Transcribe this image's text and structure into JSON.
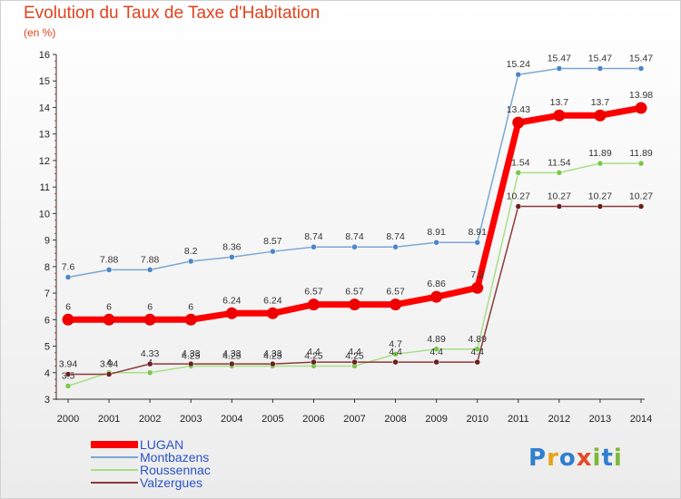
{
  "title": "Evolution du Taux de Taxe d'Habitation",
  "unit": "(en %)",
  "logo": {
    "letters": [
      {
        "ch": "P",
        "color": "#2f7fd0"
      },
      {
        "ch": "r",
        "color": "#e8a317"
      },
      {
        "ch": "o",
        "color": "#2f7fd0"
      },
      {
        "ch": "x",
        "color": "#e24a2c"
      },
      {
        "ch": "i",
        "color": "#7db83a"
      },
      {
        "ch": "t",
        "color": "#2f7fd0"
      },
      {
        "ch": "i",
        "color": "#7db83a"
      }
    ]
  },
  "chart_data": {
    "type": "line",
    "x": [
      "2000",
      "2001",
      "2002",
      "2003",
      "2004",
      "2005",
      "2006",
      "2007",
      "2008",
      "2009",
      "2010",
      "2011",
      "2012",
      "2013",
      "2014"
    ],
    "ylim": [
      3,
      16
    ],
    "yticks": [
      "3",
      "4",
      "5",
      "6",
      "7",
      "8",
      "9",
      "10",
      "11",
      "12",
      "13",
      "14",
      "15",
      "16"
    ],
    "grid": false,
    "legend_position": "bottom-left",
    "series": [
      {
        "name": "LUGAN",
        "color": "#ff0000",
        "marker_color": "#ee0000",
        "width": 7,
        "marker_r": 6.5,
        "values": [
          6,
          6,
          6,
          6,
          6.24,
          6.24,
          6.57,
          6.57,
          6.57,
          6.86,
          7.2,
          13.43,
          13.7,
          13.7,
          13.98
        ],
        "labels": [
          "6",
          "6",
          "6",
          "6",
          "6.24",
          "6.24",
          "6.57",
          "6.57",
          "6.57",
          "6.86",
          "7.2",
          "13.43",
          "13.7",
          "13.7",
          "13.98"
        ]
      },
      {
        "name": "Montbazens",
        "color": "#7ba7d2",
        "marker_color": "#4a86c8",
        "width": 1.5,
        "marker_r": 3,
        "values": [
          7.6,
          7.88,
          7.88,
          8.2,
          8.36,
          8.57,
          8.74,
          8.74,
          8.74,
          8.91,
          8.91,
          15.24,
          15.47,
          15.47,
          15.47
        ],
        "labels": [
          "7.6",
          "7.88",
          "7.88",
          "8.2",
          "8.36",
          "8.57",
          "8.74",
          "8.74",
          "8.74",
          "8.91",
          "8.91",
          "15.24",
          "15.47",
          "15.47",
          "15.47"
        ]
      },
      {
        "name": "Roussennac",
        "color": "#a8df86",
        "marker_color": "#79c84a",
        "width": 1.5,
        "marker_r": 3,
        "values": [
          3.5,
          4,
          4,
          4.25,
          4.25,
          4.25,
          4.25,
          4.25,
          4.7,
          4.89,
          4.89,
          11.54,
          11.54,
          11.89,
          11.89
        ],
        "labels": [
          "3.5",
          "4",
          "4",
          "4.25",
          "4.25",
          "4.25",
          "4.25",
          "4.25",
          "4.7",
          "4.89",
          "4.89",
          "11.54",
          "11.54",
          "11.89",
          "11.89"
        ]
      },
      {
        "name": "Valzergues",
        "color": "#8b3a3a",
        "marker_color": "#6b1f1f",
        "width": 1.5,
        "marker_r": 3,
        "values": [
          3.94,
          3.94,
          4.33,
          4.33,
          4.33,
          4.33,
          4.4,
          4.4,
          4.4,
          4.4,
          4.4,
          10.27,
          10.27,
          10.27,
          10.27
        ],
        "labels": [
          "3.94",
          "3.94",
          "4.33",
          "4.33",
          "4.33",
          "4.33",
          "4.4",
          "4.4",
          "4.4",
          "4.4",
          "4.4",
          "10.27",
          "10.27",
          "10.27",
          "10.27"
        ]
      }
    ]
  }
}
